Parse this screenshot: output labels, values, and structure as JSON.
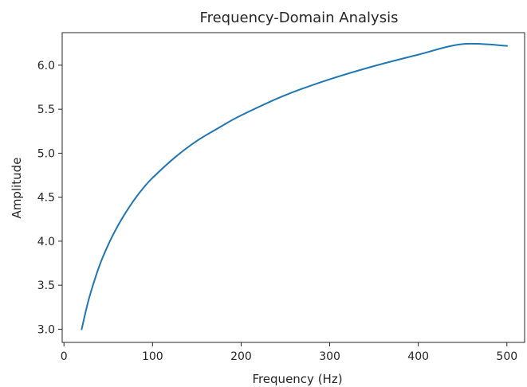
{
  "chart_data": {
    "type": "line",
    "title": "Frequency-Domain Analysis",
    "xlabel": "Frequency (Hz)",
    "ylabel": "Amplitude",
    "xlim": [
      -2,
      520
    ],
    "ylim": [
      2.85,
      6.37
    ],
    "xticks": [
      0,
      100,
      200,
      300,
      400,
      500
    ],
    "xtick_labels": [
      "0",
      "100",
      "200",
      "300",
      "400",
      "500"
    ],
    "yticks": [
      3.0,
      3.5,
      4.0,
      4.5,
      5.0,
      5.5,
      6.0
    ],
    "ytick_labels": [
      "3.0",
      "3.5",
      "4.0",
      "4.5",
      "5.0",
      "5.5",
      "6.0"
    ],
    "grid": false,
    "legend": "none",
    "series": [
      {
        "color": "#1f77b4",
        "x": [
          20,
          25,
          30,
          40,
          50,
          60,
          70,
          80,
          90,
          100,
          125,
          150,
          175,
          200,
          250,
          300,
          350,
          400,
          450,
          500
        ],
        "y": [
          3.0,
          3.22,
          3.41,
          3.72,
          3.96,
          4.16,
          4.33,
          4.48,
          4.61,
          4.72,
          4.95,
          5.14,
          5.29,
          5.43,
          5.66,
          5.84,
          5.99,
          6.12,
          6.24,
          6.22
        ]
      }
    ]
  }
}
